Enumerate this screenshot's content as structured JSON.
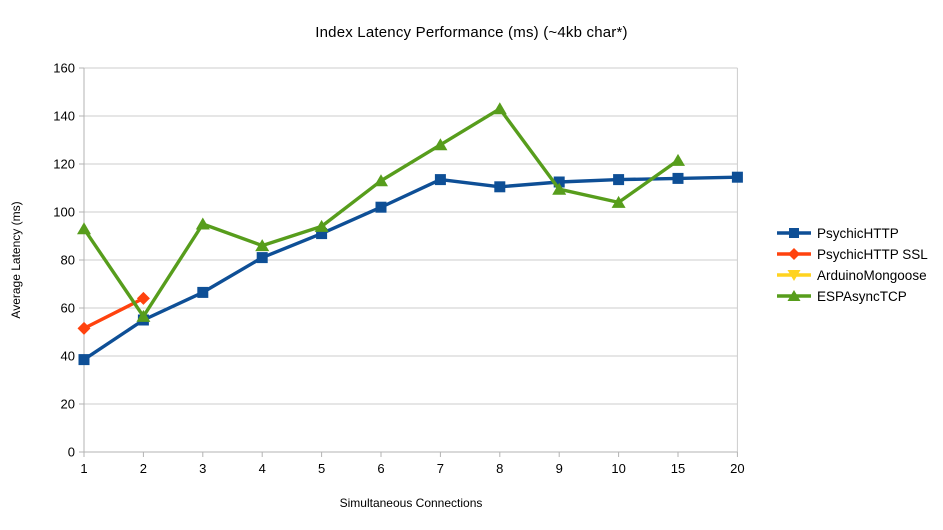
{
  "title": "Index Latency Performance (ms) (~4kb char*)",
  "chart_data": {
    "type": "line",
    "title": "Index Latency Performance (ms) (~4kb char*)",
    "xlabel": "Simultaneous Connections",
    "ylabel": "Average Latency (ms)",
    "categories": [
      "1",
      "2",
      "3",
      "4",
      "5",
      "6",
      "7",
      "8",
      "9",
      "10",
      "15",
      "20"
    ],
    "ylim": [
      0,
      160
    ],
    "ytick_step": 20,
    "grid": "horizontal",
    "legend_position": "right",
    "series": [
      {
        "name": "PsychicHTTP",
        "color": "#0e4f96",
        "marker": "square",
        "values": [
          38.5,
          55,
          66.5,
          81,
          91,
          102,
          113.5,
          110.5,
          112.5,
          113.5,
          114,
          114.5
        ]
      },
      {
        "name": "PsychicHTTP SSL",
        "color": "#ff420e",
        "marker": "diamond",
        "values": [
          51.5,
          64,
          null,
          null,
          null,
          null,
          null,
          null,
          null,
          null,
          null,
          null
        ]
      },
      {
        "name": "ArduinoMongoose",
        "color": "#ffd320",
        "marker": "triangle-down",
        "values": [
          null,
          null,
          null,
          null,
          null,
          null,
          null,
          null,
          null,
          null,
          null,
          null
        ]
      },
      {
        "name": "ESPAsyncTCP",
        "color": "#579d1c",
        "marker": "triangle-up",
        "values": [
          93,
          56.5,
          95,
          86,
          94,
          113,
          128,
          143,
          109.5,
          104,
          121.5,
          null
        ]
      }
    ],
    "axis_colors": {
      "axis_line": "#b3b3b3",
      "gridline": "#cccccc",
      "tick_label": "#000000"
    }
  }
}
